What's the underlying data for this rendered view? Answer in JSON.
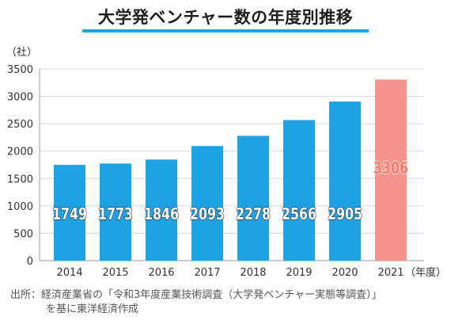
{
  "title": "大学発ベンチャー数の年度別推移",
  "source": {
    "line1": "出所：経済産業省の「令和3年度産業技術調査（大学発ベンチャー実態等調査）」",
    "line2": "を基に東洋経済作成"
  },
  "colors": {
    "bar": "#1ca3e6",
    "bar_highlight": "#f5948c",
    "label_normal": "#ffffff",
    "label_highlight": "#ff7466",
    "title_underline": "#1ca3e6"
  },
  "chart_data": {
    "type": "bar",
    "title": "大学発ベンチャー数の年度別推移",
    "y_unit_label": "（社）",
    "x_unit_label": "（年度）",
    "categories": [
      "2014",
      "2015",
      "2016",
      "2017",
      "2018",
      "2019",
      "2020",
      "2021"
    ],
    "values": [
      1749,
      1773,
      1846,
      2093,
      2278,
      2566,
      2905,
      3306
    ],
    "highlight_index": 7,
    "ylim": [
      0,
      3500
    ],
    "yticks": [
      0,
      500,
      1000,
      1500,
      2000,
      2500,
      3000,
      3500
    ],
    "grid": true,
    "data_labels": true
  }
}
